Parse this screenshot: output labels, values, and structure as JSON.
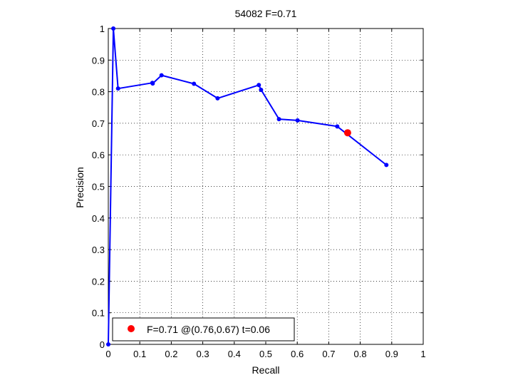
{
  "chart_data": {
    "type": "line",
    "title": "54082 F=0.71",
    "xlabel": "Recall",
    "ylabel": "Precision",
    "xlim": [
      0,
      1
    ],
    "ylim": [
      0,
      1
    ],
    "xticks": [
      "0",
      "0.1",
      "0.2",
      "0.3",
      "0.4",
      "0.5",
      "0.6",
      "0.7",
      "0.8",
      "0.9",
      "1"
    ],
    "yticks": [
      "0",
      "0.1",
      "0.2",
      "0.3",
      "0.4",
      "0.5",
      "0.6",
      "0.7",
      "0.8",
      "0.9",
      "1"
    ],
    "grid": true,
    "series": [
      {
        "color": "#0000ff",
        "marker": "dot",
        "x": [
          0.0,
          0.016,
          0.031,
          0.14,
          0.141,
          0.169,
          0.272,
          0.347,
          0.478,
          0.485,
          0.542,
          0.601,
          0.727,
          0.883
        ],
        "y": [
          0.0,
          1.0,
          0.81,
          0.828,
          0.826,
          0.852,
          0.825,
          0.779,
          0.821,
          0.806,
          0.713,
          0.709,
          0.69,
          0.568
        ]
      }
    ],
    "highlight": {
      "x": 0.76,
      "y": 0.67,
      "color": "#ff0000"
    },
    "legend": {
      "position": "bottom-left",
      "label": "F=0.71 @(0.76,0.67) t=0.06"
    }
  }
}
